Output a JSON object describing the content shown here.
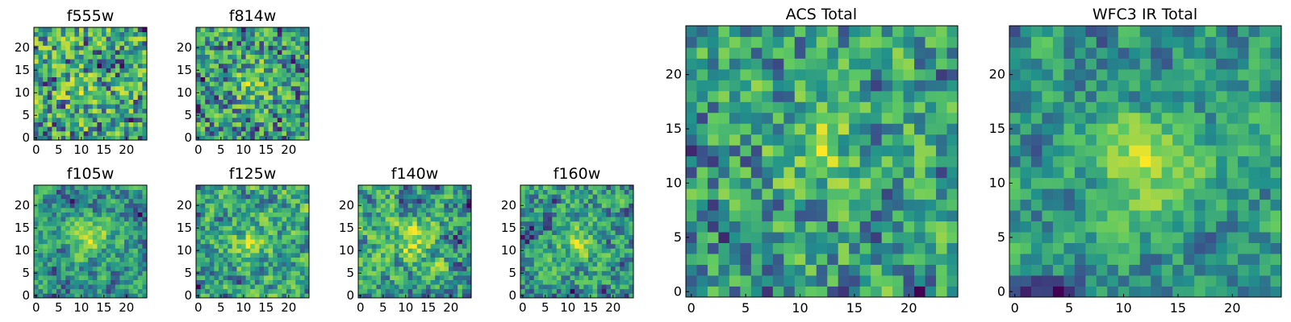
{
  "chart_data": [
    {
      "type": "heatmap",
      "id": "f555w",
      "title": "f555w",
      "grid": 25,
      "seed": 11,
      "smooth": 0.15,
      "blob": [
        10,
        10,
        0.15
      ],
      "xticks": [
        "0",
        "5",
        "10",
        "15",
        "20"
      ],
      "yticks": [
        "0",
        "5",
        "10",
        "15",
        "20"
      ]
    },
    {
      "type": "heatmap",
      "id": "f814w",
      "title": "f814w",
      "grid": 25,
      "seed": 23,
      "smooth": 0.2,
      "blob": [
        12,
        12,
        0.3
      ],
      "xticks": [
        "0",
        "5",
        "10",
        "15",
        "20"
      ],
      "yticks": [
        "0",
        "5",
        "10",
        "15",
        "20"
      ]
    },
    {
      "type": "heatmap",
      "id": "f105w",
      "title": "f105w",
      "grid": 25,
      "seed": 37,
      "smooth": 0.55,
      "blob": [
        12,
        13,
        0.45
      ],
      "xticks": [
        "0",
        "5",
        "10",
        "15",
        "20"
      ],
      "yticks": [
        "0",
        "5",
        "10",
        "15",
        "20"
      ]
    },
    {
      "type": "heatmap",
      "id": "f125w",
      "title": "f125w",
      "grid": 25,
      "seed": 41,
      "smooth": 0.5,
      "blob": [
        12,
        12,
        0.3
      ],
      "xticks": [
        "0",
        "5",
        "10",
        "15",
        "20"
      ],
      "yticks": [
        "0",
        "5",
        "10",
        "15",
        "20"
      ]
    },
    {
      "type": "heatmap",
      "id": "f140w",
      "title": "f140w",
      "grid": 25,
      "seed": 53,
      "smooth": 0.5,
      "blob": [
        12,
        12,
        0.3
      ],
      "xticks": [
        "0",
        "5",
        "10",
        "15",
        "20"
      ],
      "yticks": [
        "0",
        "5",
        "10",
        "15",
        "20"
      ]
    },
    {
      "type": "heatmap",
      "id": "f160w",
      "title": "f160w",
      "grid": 25,
      "seed": 67,
      "smooth": 0.5,
      "blob": [
        12,
        12,
        0.3
      ],
      "xticks": [
        "0",
        "5",
        "10",
        "15",
        "20"
      ],
      "yticks": [
        "0",
        "5",
        "10",
        "15",
        "20"
      ]
    },
    {
      "type": "heatmap",
      "id": "acs-total",
      "title": "ACS Total",
      "grid": 25,
      "seed": 79,
      "smooth": 0.25,
      "blob": [
        12,
        13,
        0.3
      ],
      "xticks": [
        "0",
        "5",
        "10",
        "15",
        "20"
      ],
      "yticks": [
        "0",
        "5",
        "10",
        "15",
        "20"
      ]
    },
    {
      "type": "heatmap",
      "id": "wfc3-ir-total",
      "title": "WFC3 IR Total",
      "grid": 25,
      "seed": 97,
      "smooth": 0.55,
      "blob": [
        12,
        12,
        0.55
      ],
      "xticks": [
        "0",
        "5",
        "10",
        "15",
        "20"
      ],
      "yticks": [
        "0",
        "5",
        "10",
        "15",
        "20"
      ]
    }
  ],
  "colormap": {
    "name": "viridis",
    "stops": [
      "#440154",
      "#3b528b",
      "#21918c",
      "#5ec962",
      "#fde725"
    ]
  }
}
